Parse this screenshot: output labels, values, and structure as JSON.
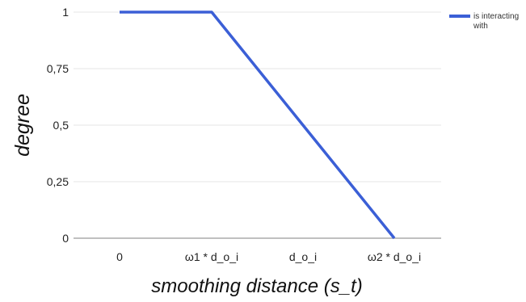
{
  "chart_data": {
    "type": "line",
    "title": "",
    "xlabel": "smoothing distance (s_t)",
    "ylabel": "degree",
    "categories": [
      "0",
      "ω1 * d_o_i",
      "d_o_i",
      "ω2 * d_o_i"
    ],
    "yticks": [
      "0",
      "0,25",
      "0,5",
      "0,75",
      "1"
    ],
    "ylim": [
      0,
      1
    ],
    "grid": true,
    "legend": "top-right",
    "series": [
      {
        "name": "is interacting with",
        "color": "#3b5fd6",
        "points": [
          [
            0,
            1
          ],
          [
            1,
            1
          ],
          [
            3,
            0
          ]
        ]
      }
    ]
  }
}
